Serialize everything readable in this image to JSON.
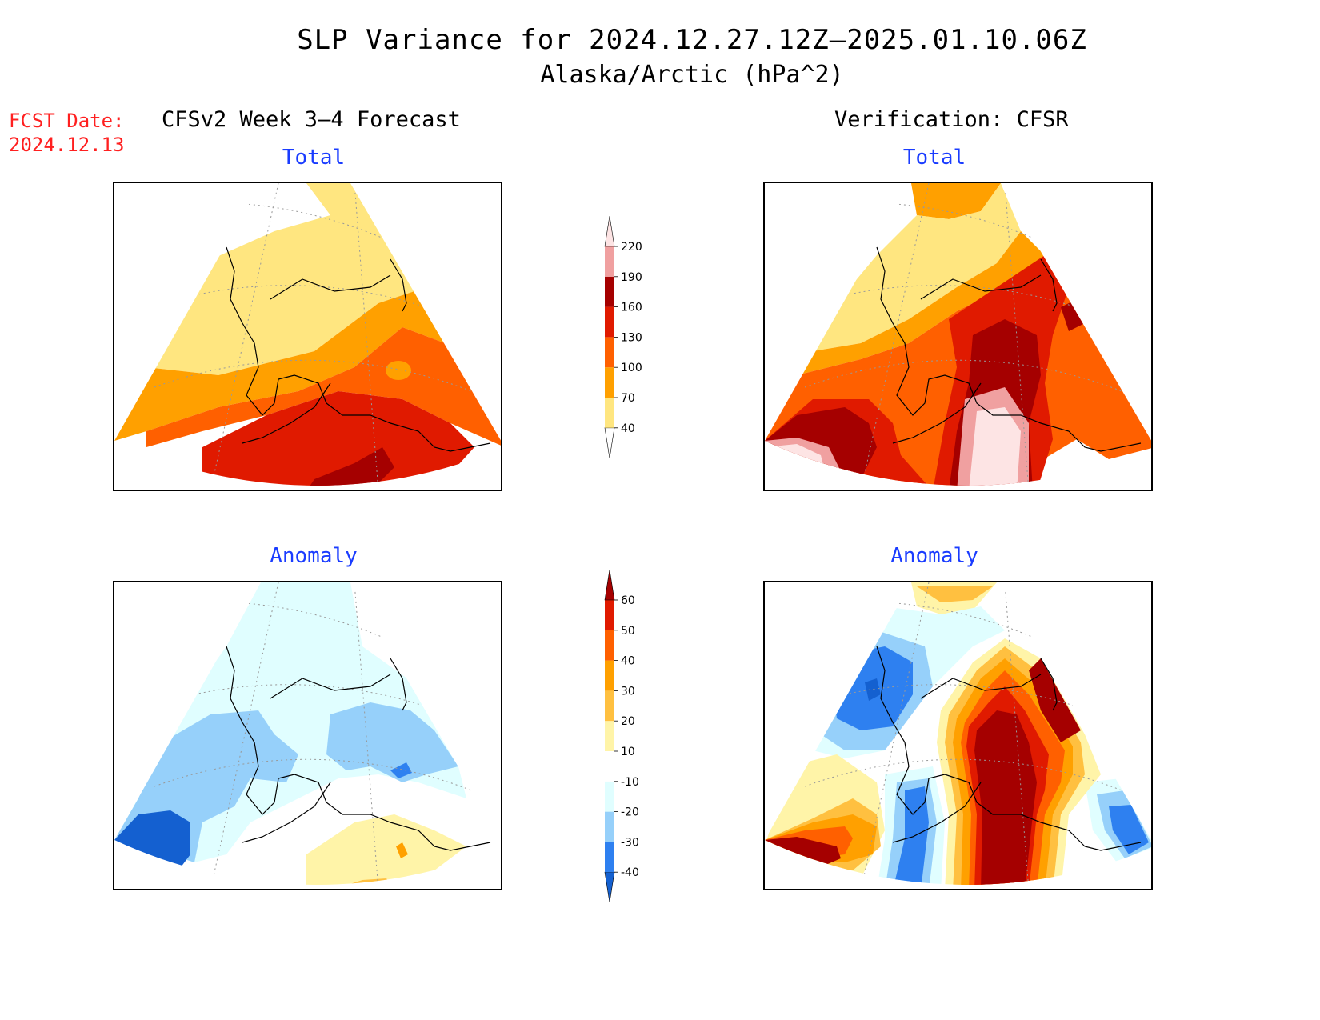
{
  "title": {
    "line1": "SLP Variance for 2024.12.27.12Z–2025.01.10.06Z",
    "line2": "Alaska/Arctic (hPa^2)"
  },
  "forecast_date": {
    "label": "FCST Date:",
    "value": "2024.12.13"
  },
  "columns": {
    "left_header": "CFSv2 Week 3–4 Forecast",
    "right_header": "Verification: CFSR"
  },
  "panels": {
    "forecast_total": {
      "title": "Total"
    },
    "forecast_anomaly": {
      "title": "Anomaly"
    },
    "verification_total": {
      "title": "Total"
    },
    "verification_anomaly": {
      "title": "Anomaly"
    }
  },
  "colorbars": {
    "total": {
      "levels": [
        "40",
        "70",
        "100",
        "130",
        "160",
        "190",
        "220"
      ],
      "colors": [
        "#ffffff",
        "#ffe680",
        "#ffa000",
        "#ff6000",
        "#e01a00",
        "#a50000",
        "#f0a0a0",
        "#fde4e4"
      ]
    },
    "anomaly": {
      "levels": [
        "-40",
        "-30",
        "-20",
        "-10",
        "10",
        "20",
        "30",
        "40",
        "50",
        "60"
      ],
      "colors": [
        "#1460d0",
        "#2e80f0",
        "#96d0fa",
        "#e0feff",
        "#ffffff",
        "#fff4a8",
        "#ffc040",
        "#ffa000",
        "#ff6000",
        "#e01a00",
        "#a50000"
      ]
    }
  },
  "map_colors": {
    "t_lightyellow": "#ffe680",
    "t_orange": "#ffa000",
    "t_darkorange": "#ff6000",
    "t_red": "#e01a00",
    "t_darkred": "#a50000",
    "t_pink": "#f0a0a0",
    "t_palepink": "#fde4e4",
    "a_darkblue": "#1460d0",
    "a_blue": "#2e80f0",
    "a_lightblue": "#96d0fa",
    "a_paleblue": "#e0feff",
    "a_paleyellow": "#fff4a8"
  }
}
